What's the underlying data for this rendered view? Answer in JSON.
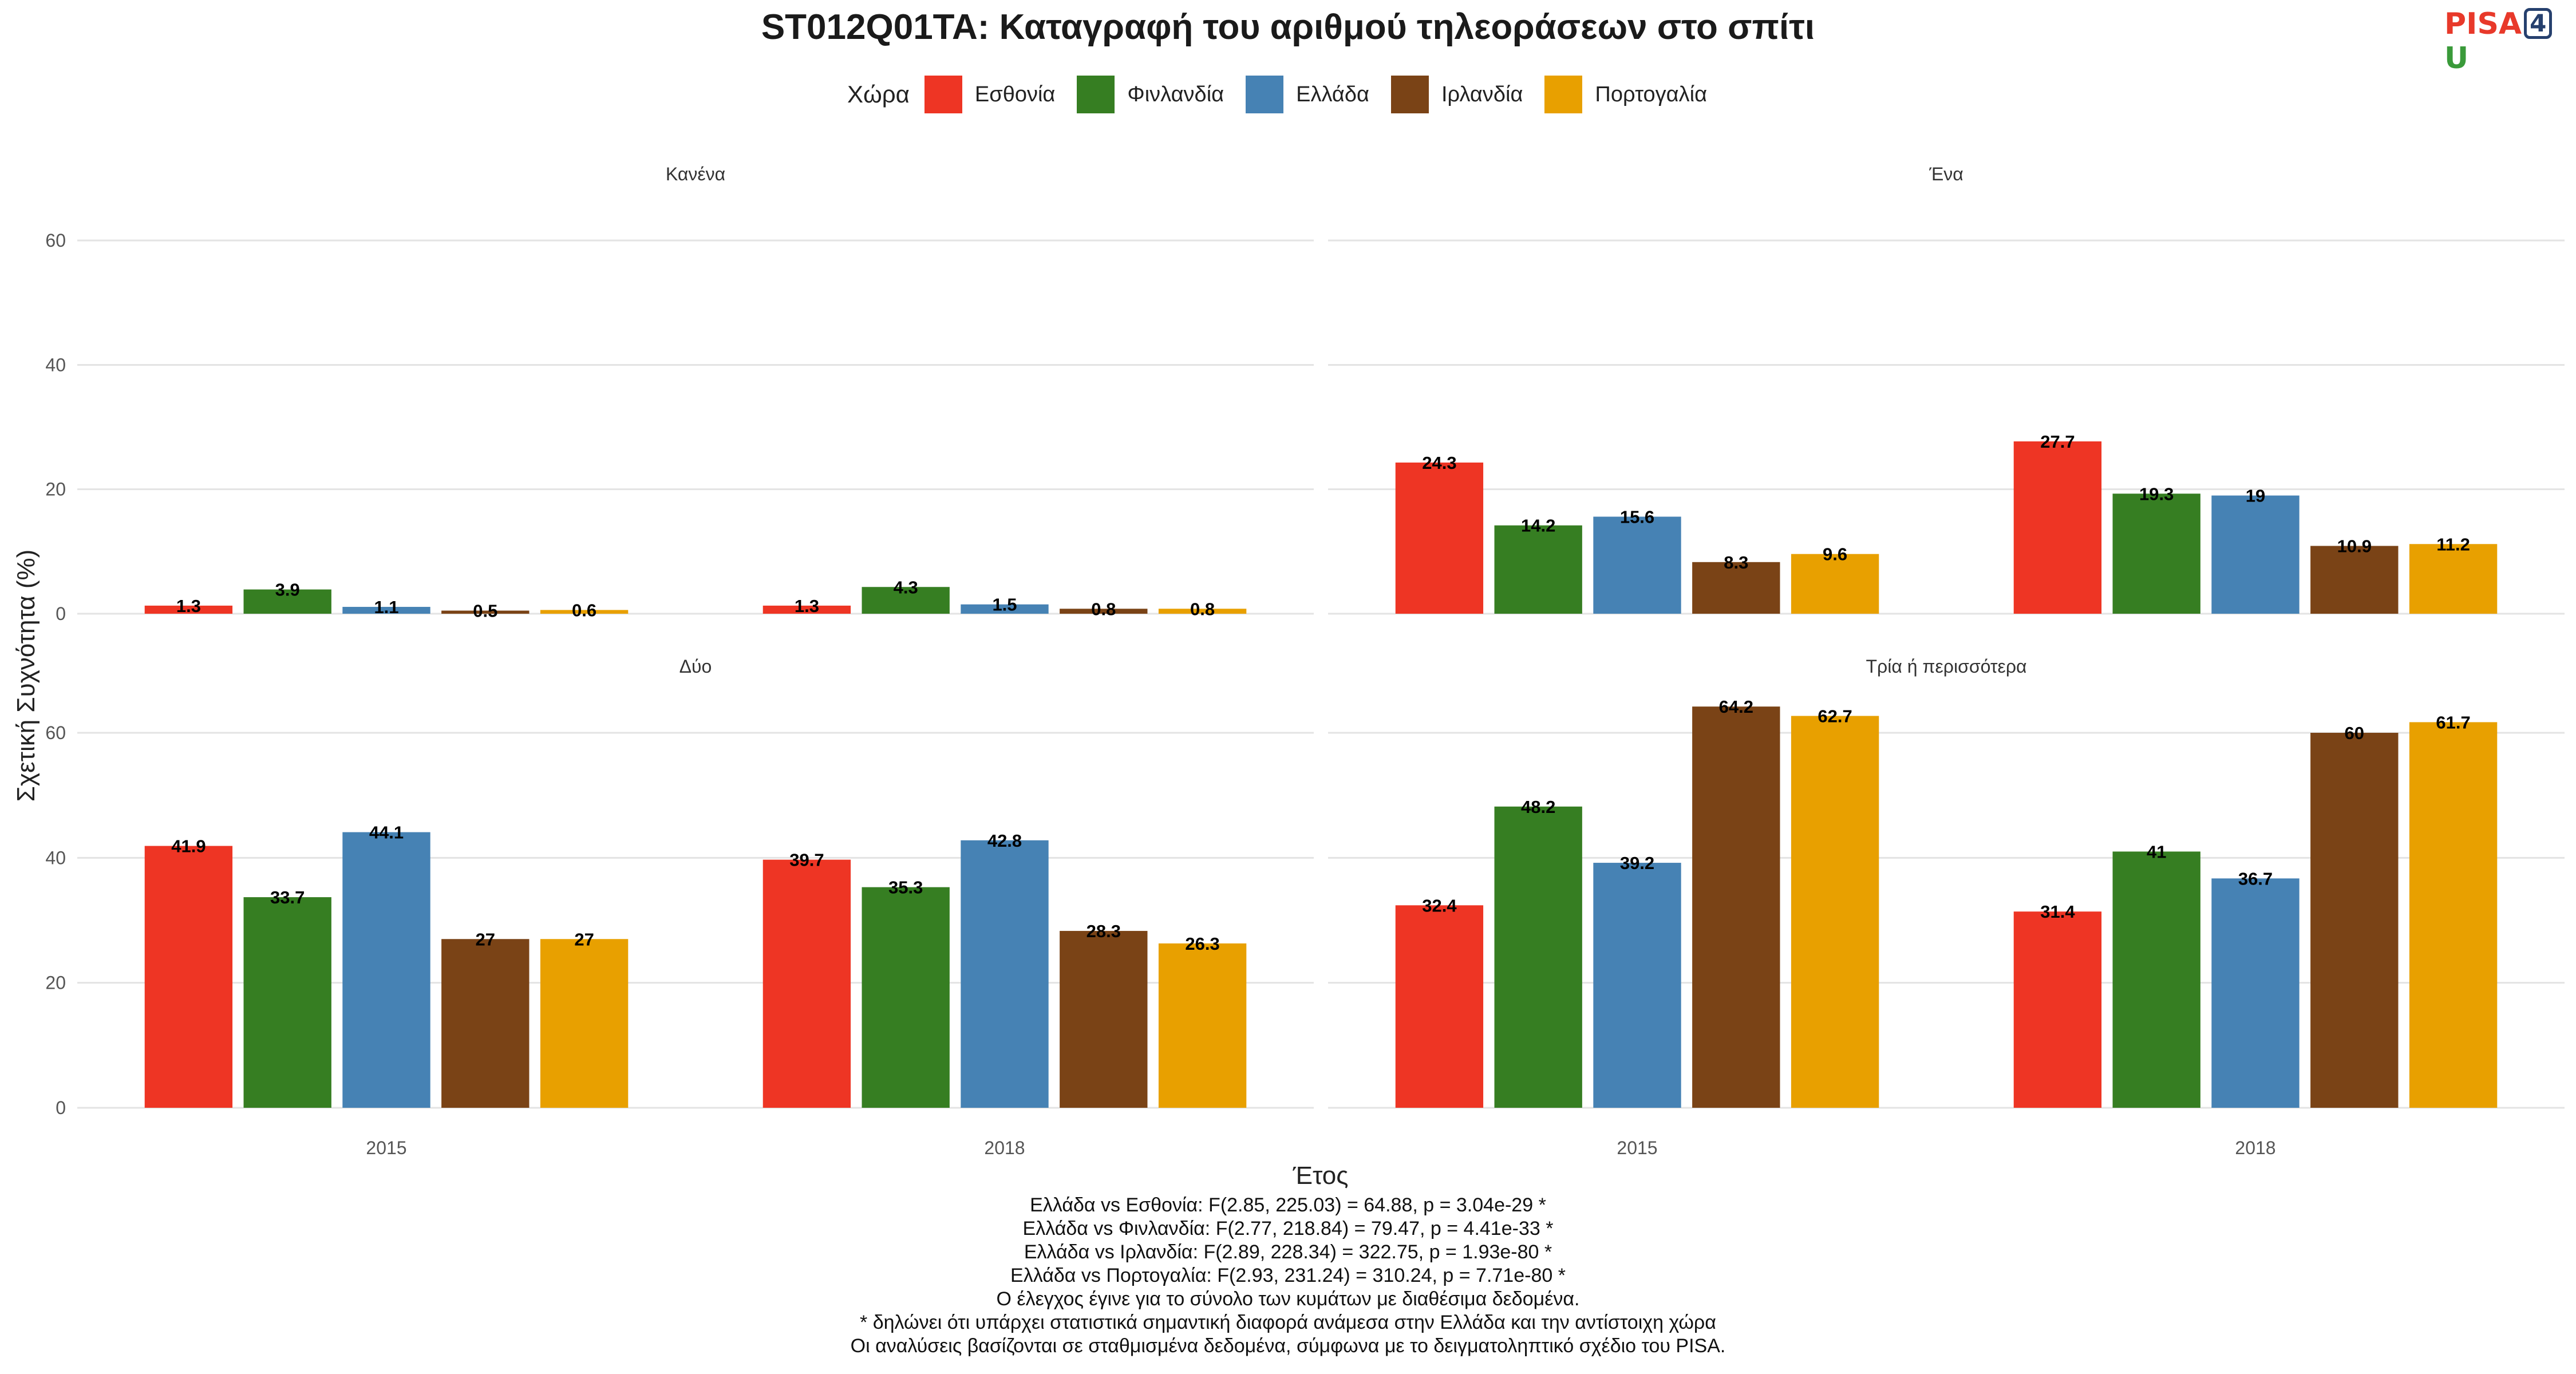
{
  "title": "ST012Q01TA: Καταγραφή του αριθμού τηλεοράσεων στο σπίτι",
  "logo": {
    "part1": "PISA",
    "part2": "4",
    "part3": "U"
  },
  "legend_title": "Χώρα",
  "notes": [
    "Ελλάδα vs Εσθονία: F(2.85, 225.03) = 64.88, p = 3.04e-29 *",
    "Ελλάδα vs Φινλανδία: F(2.77, 218.84) = 79.47, p = 4.41e-33 *",
    "Ελλάδα vs Ιρλανδία: F(2.89, 228.34) = 322.75, p = 1.93e-80 *",
    "Ελλάδα vs Πορτογαλία: F(2.93, 231.24) = 310.24, p = 7.71e-80 *",
    "Ο έλεγχος έγινε για το σύνολο των κυμάτων με διαθέσιμα δεδομένα.",
    "* δηλώνει ότι υπάρχει στατιστικά σημαντική διαφορά ανάμεσα στην Ελλάδα και την αντίστοιχη χώρα",
    "Οι αναλύσεις βασίζονται σε σταθμισμένα δεδομένα, σύμφωνα με το δειγματοληπτικό σχέδιο του PISA."
  ],
  "chart_data": {
    "type": "bar",
    "xlabel": "Έτος",
    "ylabel": "Σχετική Συχνότητα (%)",
    "ylim": [
      0,
      60
    ],
    "yticks": [
      0,
      20,
      40,
      60
    ],
    "categories": [
      "2015",
      "2018"
    ],
    "grid": true,
    "legend_position": "top",
    "series": [
      {
        "name": "Εσθονία",
        "color": "#ee3524"
      },
      {
        "name": "Φινλανδία",
        "color": "#367e22"
      },
      {
        "name": "Ελλάδα",
        "color": "#4682b4"
      },
      {
        "name": "Ιρλανδία",
        "color": "#7a4316"
      },
      {
        "name": "Πορτογαλία",
        "color": "#e8a000"
      }
    ],
    "panels": [
      {
        "title": "Κανένα",
        "values": [
          [
            1.3,
            3.9,
            1.1,
            0.5,
            0.6
          ],
          [
            1.3,
            4.3,
            1.5,
            0.8,
            0.8
          ]
        ]
      },
      {
        "title": "Ένα",
        "values": [
          [
            24.3,
            14.2,
            15.6,
            8.3,
            9.6
          ],
          [
            27.7,
            19.3,
            19,
            10.9,
            11.2
          ]
        ]
      },
      {
        "title": "Δύο",
        "values": [
          [
            41.9,
            33.7,
            44.1,
            27,
            27
          ],
          [
            39.7,
            35.3,
            42.8,
            28.3,
            26.3
          ]
        ]
      },
      {
        "title": "Τρία ή περισσότερα",
        "values": [
          [
            32.4,
            48.2,
            39.2,
            64.2,
            62.7
          ],
          [
            31.4,
            41,
            36.7,
            60,
            61.7
          ]
        ]
      }
    ]
  }
}
